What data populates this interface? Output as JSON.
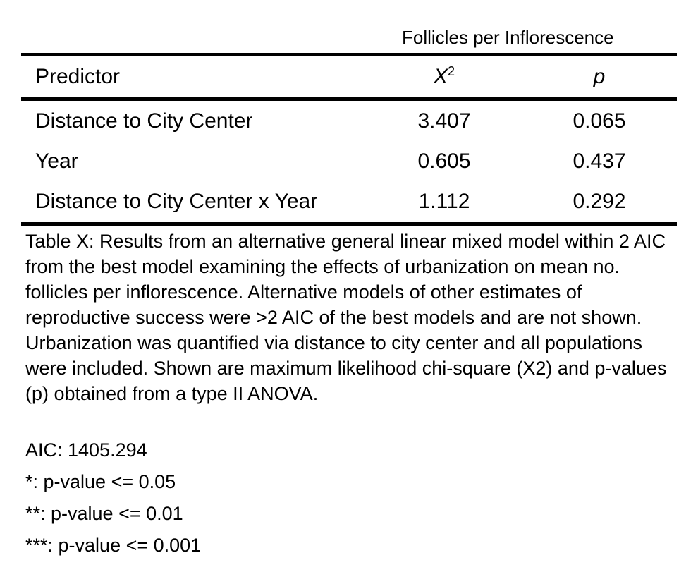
{
  "table": {
    "spanner_header": "Follicles per Inflorescence",
    "columns": {
      "predictor": "Predictor",
      "x2_base": "X",
      "x2_sup": "2",
      "p": "p"
    },
    "rows": [
      {
        "predictor": "Distance to City Center",
        "x2": "3.407",
        "p": "0.065"
      },
      {
        "predictor": "Year",
        "x2": "0.605",
        "p": "0.437"
      },
      {
        "predictor": "Distance to City Center x Year",
        "x2": "1.112",
        "p": "0.292"
      }
    ]
  },
  "caption": "Table X: Results from an alternative general linear mixed model within 2 AIC from the best model examining the effects of urbanization on mean no. follicles per inflorescence. Alternative models of other estimates of reproductive success were >2 AIC of the best models and are not shown. Urbanization was quantified via distance to city center and all populations were included. Shown are maximum likelihood chi-square (X2) and p-values (p) obtained from a type II ANOVA.",
  "notes": [
    "AIC: 1405.294",
    "*: p-value <= 0.05",
    "**: p-value <= 0.01",
    "***: p-value <= 0.001"
  ]
}
